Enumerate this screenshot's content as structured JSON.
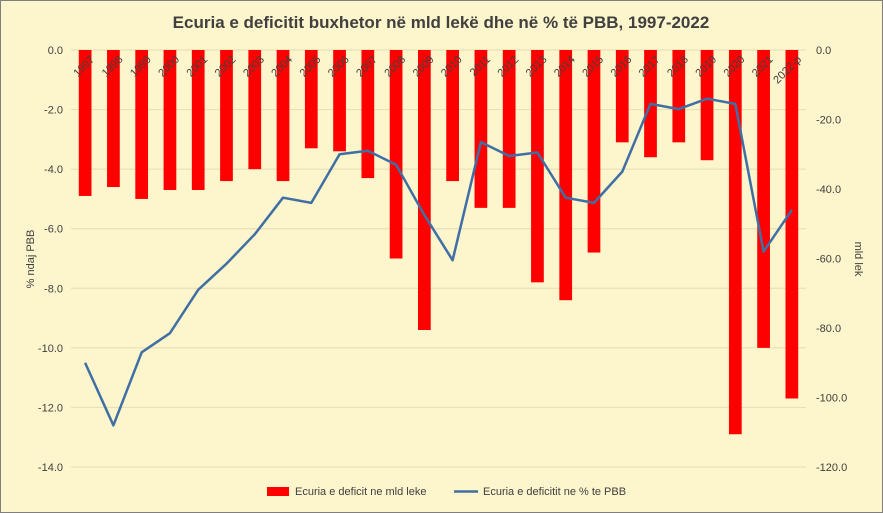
{
  "chart_data": {
    "type": "bar+line",
    "title": "Ecuria e deficitit buxhetor në mld lekë dhe në % të PBB, 1997-2022",
    "categories": [
      "1997",
      "1998",
      "1999",
      "2000",
      "2001",
      "2002",
      "2003",
      "2004",
      "2005",
      "2006",
      "2007",
      "2008",
      "2009",
      "2010",
      "2011",
      "2012",
      "2013",
      "2014",
      "2015",
      "2016",
      "2017",
      "2018",
      "2019",
      "2020",
      "2021",
      "2022-p"
    ],
    "left_axis": {
      "label": "% ndaj PBB",
      "min": -14,
      "max": 0,
      "ticks": [
        "0.0",
        "-2.0",
        "-4.0",
        "-6.0",
        "-8.0",
        "-10.0",
        "-12.0",
        "-14.0"
      ]
    },
    "right_axis": {
      "label": "mld lek",
      "min": -120,
      "max": 0,
      "ticks": [
        "0.0",
        "-20.0",
        "-40.0",
        "-60.0",
        "-80.0",
        "-100.0",
        "-120.0"
      ]
    },
    "grid": true,
    "legend_position": "bottom",
    "series": [
      {
        "name": "Ecuria e deficit ne mld leke",
        "type": "bar",
        "axis": "left",
        "color": "#ff0000",
        "values": [
          -4.9,
          -4.6,
          -5.0,
          -4.7,
          -4.7,
          -4.4,
          -4.0,
          -4.4,
          -3.3,
          -3.4,
          -4.3,
          -7.0,
          -9.4,
          -4.4,
          -5.3,
          -5.3,
          -7.8,
          -8.4,
          -6.8,
          -3.1,
          -3.6,
          -3.1,
          -3.7,
          -12.9,
          -10.0,
          -11.7
        ]
      },
      {
        "name": "Ecuria e deficitit ne % te PBB",
        "type": "line",
        "axis": "right",
        "color": "#3f6fa4",
        "values": [
          -90.0,
          -108.0,
          -87.0,
          -81.5,
          -69.0,
          -61.5,
          -53.0,
          -42.5,
          -44.0,
          -30.0,
          -29.0,
          -33.0,
          -47.5,
          -60.5,
          -26.5,
          -30.5,
          -29.5,
          -42.5,
          -44.0,
          -35.0,
          -15.5,
          -17.0,
          -14.0,
          -15.5,
          -58.0,
          -46.0
        ]
      }
    ]
  }
}
